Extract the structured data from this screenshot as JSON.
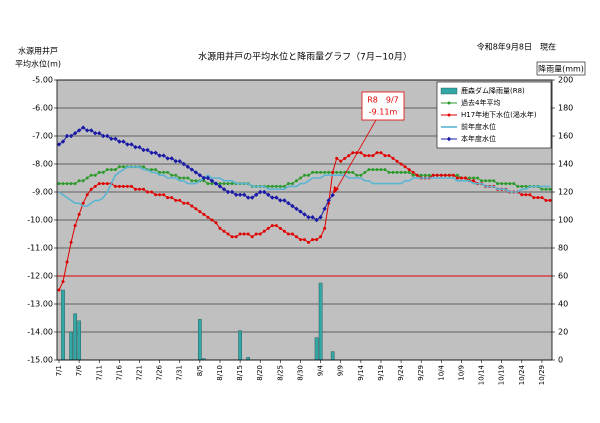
{
  "chart_data": {
    "type": "line",
    "title": "水源用井戸の平均水位と降雨量グラフ（7月−10月）",
    "date_note": "令和8年9月8日　現在",
    "y_label": [
      "水源用井戸",
      "平均水位(m)"
    ],
    "y2_label": "降雨量(mm)",
    "annotation": {
      "lines": [
        "R8　9/7",
        "-9.11m"
      ],
      "color": "#e00000"
    },
    "hline": {
      "value": -12,
      "color": "#e00000"
    },
    "plot_color": "#c0c0c0",
    "grid": true,
    "legend": "top-right",
    "ylim": [
      -15,
      -5
    ],
    "yticks": [
      {
        "value": -5,
        "label": "-5.00"
      },
      {
        "value": -6,
        "label": "-6.00"
      },
      {
        "value": -7,
        "label": "-7.00"
      },
      {
        "value": -8,
        "label": "-8.00"
      },
      {
        "value": -9,
        "label": "-9.00"
      },
      {
        "value": -10,
        "label": "-10.00"
      },
      {
        "value": -11,
        "label": "-11.00"
      },
      {
        "value": -12,
        "label": "-12.00"
      },
      {
        "value": -13,
        "label": "-13.00"
      },
      {
        "value": -14,
        "label": "-14.00"
      },
      {
        "value": -15,
        "label": "-15.00"
      }
    ],
    "y2lim": [
      0,
      200
    ],
    "y2ticks": [
      0,
      20,
      40,
      60,
      80,
      100,
      120,
      140,
      160,
      180,
      200
    ],
    "categories": [
      "7/1",
      null,
      null,
      null,
      null,
      "7/6",
      null,
      null,
      null,
      null,
      "7/11",
      null,
      null,
      null,
      null,
      "7/16",
      null,
      null,
      null,
      null,
      "7/21",
      null,
      null,
      null,
      null,
      "7/26",
      null,
      null,
      null,
      null,
      "7/31",
      null,
      null,
      null,
      null,
      "8/5",
      null,
      null,
      null,
      null,
      "8/10",
      null,
      null,
      null,
      null,
      "8/15",
      null,
      null,
      null,
      null,
      "8/20",
      null,
      null,
      null,
      null,
      "8/25",
      null,
      null,
      null,
      null,
      "8/30",
      null,
      null,
      null,
      null,
      "9/4",
      null,
      null,
      null,
      null,
      "9/9",
      null,
      null,
      null,
      null,
      "9/14",
      null,
      null,
      null,
      null,
      "9/19",
      null,
      null,
      null,
      null,
      "9/24",
      null,
      null,
      null,
      null,
      "9/29",
      null,
      null,
      null,
      null,
      "10/4",
      null,
      null,
      null,
      null,
      "10/9",
      null,
      null,
      null,
      null,
      "10/14",
      null,
      null,
      null,
      null,
      "10/19",
      null,
      null,
      null,
      null,
      "10/24",
      null,
      null,
      null,
      null,
      "10/29",
      null,
      null
    ],
    "series": [
      {
        "name": "鹿森ダム降雨量(R8)",
        "type": "bar",
        "axis": "y2",
        "color": "#33a6a6",
        "values": [
          0,
          50,
          0,
          20,
          33,
          28,
          0,
          0,
          0,
          0,
          0,
          0,
          0,
          0,
          0,
          0,
          0,
          0,
          0,
          0,
          0,
          0,
          0,
          0,
          0,
          0,
          0,
          0,
          0,
          0,
          0,
          0,
          0,
          0,
          0,
          29,
          1,
          0,
          0,
          0,
          0,
          0,
          0,
          0,
          0,
          21,
          0,
          2,
          0,
          0,
          0,
          0,
          0,
          0,
          0,
          0,
          0,
          0,
          0,
          0,
          0,
          0,
          0,
          0,
          16,
          55,
          0,
          0,
          6,
          0,
          0,
          0,
          0,
          0,
          0,
          0,
          0,
          0,
          0,
          0,
          0,
          0,
          0,
          0,
          0,
          0,
          0,
          0,
          0,
          0,
          0,
          0,
          0,
          0,
          0,
          0,
          0,
          0,
          0,
          0,
          0,
          0,
          0,
          0,
          0,
          0,
          0,
          0,
          0,
          0,
          0,
          0,
          0,
          0,
          0,
          0,
          0,
          0,
          0,
          0,
          0,
          0,
          0
        ]
      },
      {
        "name": "過去4年平均",
        "type": "line",
        "color": "#2e9a2e",
        "marker": "circle",
        "values": [
          -8.7,
          -8.7,
          -8.7,
          -8.7,
          -8.7,
          -8.6,
          -8.6,
          -8.5,
          -8.4,
          -8.4,
          -8.3,
          -8.3,
          -8.2,
          -8.2,
          -8.2,
          -8.1,
          -8.1,
          -8.1,
          -8.1,
          -8.1,
          -8.1,
          -8.1,
          -8.2,
          -8.2,
          -8.2,
          -8.3,
          -8.3,
          -8.3,
          -8.4,
          -8.4,
          -8.5,
          -8.5,
          -8.5,
          -8.6,
          -8.6,
          -8.6,
          -8.6,
          -8.7,
          -8.7,
          -8.7,
          -8.7,
          -8.7,
          -8.7,
          -8.7,
          -8.7,
          -8.7,
          -8.7,
          -8.7,
          -8.8,
          -8.8,
          -8.8,
          -8.8,
          -8.8,
          -8.8,
          -8.8,
          -8.8,
          -8.8,
          -8.7,
          -8.7,
          -8.6,
          -8.5,
          -8.4,
          -8.4,
          -8.3,
          -8.3,
          -8.3,
          -8.3,
          -8.3,
          -8.3,
          -8.3,
          -8.3,
          -8.3,
          -8.3,
          -8.3,
          -8.4,
          -8.4,
          -8.3,
          -8.2,
          -8.2,
          -8.2,
          -8.2,
          -8.2,
          -8.3,
          -8.3,
          -8.3,
          -8.3,
          -8.3,
          -8.3,
          -8.4,
          -8.4,
          -8.4,
          -8.4,
          -8.4,
          -8.4,
          -8.4,
          -8.4,
          -8.4,
          -8.4,
          -8.4,
          -8.4,
          -8.5,
          -8.5,
          -8.5,
          -8.5,
          -8.5,
          -8.6,
          -8.6,
          -8.6,
          -8.6,
          -8.7,
          -8.7,
          -8.7,
          -8.7,
          -8.7,
          -8.8,
          -8.8,
          -8.8,
          -8.8,
          -8.8,
          -8.8,
          -8.9,
          -8.9,
          -8.9
        ]
      },
      {
        "name": "H17年地下水位(渇水年)",
        "type": "line",
        "color": "#e00000",
        "marker": "circle",
        "values": [
          -12.5,
          -12.2,
          -11.5,
          -10.8,
          -10.2,
          -9.8,
          -9.4,
          -9.1,
          -8.9,
          -8.8,
          -8.7,
          -8.7,
          -8.7,
          -8.7,
          -8.8,
          -8.8,
          -8.8,
          -8.8,
          -8.8,
          -8.9,
          -8.9,
          -8.9,
          -9.0,
          -9.0,
          -9.1,
          -9.1,
          -9.1,
          -9.2,
          -9.2,
          -9.3,
          -9.3,
          -9.4,
          -9.4,
          -9.5,
          -9.6,
          -9.7,
          -9.8,
          -9.9,
          -10.0,
          -10.1,
          -10.3,
          -10.4,
          -10.5,
          -10.6,
          -10.6,
          -10.5,
          -10.5,
          -10.5,
          -10.6,
          -10.5,
          -10.5,
          -10.4,
          -10.3,
          -10.2,
          -10.2,
          -10.3,
          -10.4,
          -10.5,
          -10.5,
          -10.6,
          -10.7,
          -10.7,
          -10.8,
          -10.7,
          -10.7,
          -10.6,
          -10.3,
          -9.4,
          -8.3,
          -7.8,
          -7.9,
          -7.8,
          -7.7,
          -7.6,
          -7.6,
          -7.6,
          -7.7,
          -7.7,
          -7.7,
          -7.6,
          -7.6,
          -7.7,
          -7.7,
          -7.8,
          -7.9,
          -8.0,
          -8.1,
          -8.2,
          -8.3,
          -8.4,
          -8.5,
          -8.5,
          -8.5,
          -8.4,
          -8.4,
          -8.4,
          -8.4,
          -8.4,
          -8.4,
          -8.5,
          -8.5,
          -8.5,
          -8.6,
          -8.6,
          -8.7,
          -8.7,
          -8.8,
          -8.8,
          -8.8,
          -8.9,
          -8.9,
          -8.9,
          -9.0,
          -9.0,
          -9.0,
          -9.1,
          -9.1,
          -9.1,
          -9.2,
          -9.2,
          -9.2,
          -9.3,
          -9.3
        ]
      },
      {
        "name": "前年度水位",
        "type": "line",
        "color": "#5ab4d2",
        "values": [
          -9.0,
          -9.1,
          -9.2,
          -9.3,
          -9.4,
          -9.4,
          -9.5,
          -9.5,
          -9.4,
          -9.3,
          -9.3,
          -9.2,
          -9.0,
          -8.7,
          -8.4,
          -8.3,
          -8.2,
          -8.1,
          -8.1,
          -8.1,
          -8.1,
          -8.2,
          -8.2,
          -8.3,
          -8.3,
          -8.4,
          -8.4,
          -8.5,
          -8.5,
          -8.5,
          -8.6,
          -8.6,
          -8.7,
          -8.7,
          -8.7,
          -8.6,
          -8.5,
          -8.4,
          -8.5,
          -8.5,
          -8.5,
          -8.6,
          -8.6,
          -8.6,
          -8.7,
          -8.7,
          -8.7,
          -8.7,
          -8.8,
          -8.8,
          -8.8,
          -8.8,
          -8.9,
          -8.9,
          -8.9,
          -8.9,
          -8.9,
          -8.8,
          -8.8,
          -8.8,
          -8.7,
          -8.7,
          -8.6,
          -8.5,
          -8.5,
          -8.5,
          -8.4,
          -8.4,
          -8.4,
          -8.4,
          -8.4,
          -8.4,
          -8.5,
          -8.5,
          -8.5,
          -8.5,
          -8.6,
          -8.6,
          -8.7,
          -8.7,
          -8.7,
          -8.7,
          -8.7,
          -8.7,
          -8.7,
          -8.7,
          -8.6,
          -8.6,
          -8.5,
          -8.5,
          -8.5,
          -8.5,
          -8.5,
          -8.5,
          -8.5,
          -8.5,
          -8.5,
          -8.5,
          -8.5,
          -8.6,
          -8.6,
          -8.6,
          -8.6,
          -8.7,
          -8.7,
          -8.7,
          -8.8,
          -8.8,
          -8.8,
          -8.9,
          -8.9,
          -8.9,
          -9.0,
          -9.0,
          -9.0,
          -8.9,
          -8.9,
          -8.8,
          -8.8,
          -8.8,
          -8.8,
          -8.8,
          -8.8
        ]
      },
      {
        "name": "本年度水位",
        "type": "line",
        "color": "#1a1aa6",
        "marker": "diamond",
        "values": [
          -7.3,
          -7.2,
          -7.0,
          -7.0,
          -6.9,
          -6.8,
          -6.7,
          -6.8,
          -6.8,
          -6.9,
          -6.9,
          -7.0,
          -7.0,
          -7.1,
          -7.1,
          -7.2,
          -7.2,
          -7.3,
          -7.3,
          -7.4,
          -7.4,
          -7.5,
          -7.5,
          -7.6,
          -7.6,
          -7.7,
          -7.7,
          -7.8,
          -7.8,
          -7.9,
          -7.9,
          -8.0,
          -8.1,
          -8.2,
          -8.3,
          -8.4,
          -8.5,
          -8.5,
          -8.6,
          -8.7,
          -8.8,
          -8.9,
          -9.0,
          -9.0,
          -9.1,
          -9.1,
          -9.1,
          -9.2,
          -9.2,
          -9.1,
          -9.0,
          -9.0,
          -9.1,
          -9.2,
          -9.2,
          -9.3,
          -9.3,
          -9.4,
          -9.5,
          -9.6,
          -9.7,
          -9.8,
          -9.9,
          -9.9,
          -10.0,
          -9.9,
          -9.6,
          -9.3,
          -9.11,
          null,
          null,
          null,
          null,
          null,
          null,
          null,
          null,
          null,
          null,
          null,
          null,
          null,
          null,
          null,
          null,
          null,
          null,
          null,
          null,
          null,
          null,
          null,
          null,
          null,
          null,
          null,
          null,
          null,
          null,
          null,
          null,
          null,
          null,
          null,
          null,
          null,
          null,
          null,
          null,
          null,
          null,
          null,
          null,
          null,
          null,
          null,
          null,
          null,
          null,
          null,
          null,
          null,
          null
        ]
      }
    ]
  }
}
